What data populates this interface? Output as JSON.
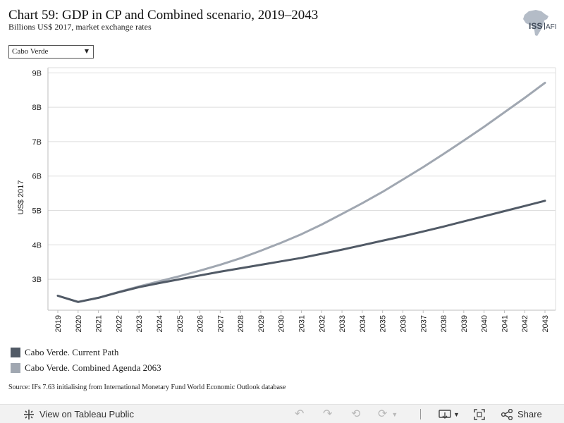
{
  "title": "Chart 59: GDP in CP and Combined scenario, 2019–2043",
  "subtitle": "Billions US$ 2017, market exchange rates",
  "logo": {
    "text_main": "ISS",
    "text_accent": "AFI"
  },
  "filter": {
    "selected": "Cabo Verde"
  },
  "source": "Source: IFs 7.63 initialising from International Monetary Fund World Economic Outlook database",
  "colors": {
    "current_path": "#515a66",
    "combined": "#a0a7b1",
    "grid": "#dedede"
  },
  "footer": {
    "view_label": "View on Tableau Public",
    "share_label": "Share",
    "icons": [
      "tableau-icon",
      "undo-icon",
      "redo-icon",
      "revert-icon",
      "refresh-icon",
      "download-icon",
      "fullscreen-icon",
      "share-icon"
    ]
  },
  "chart_data": {
    "type": "line",
    "title": "Chart 59: GDP in CP and Combined scenario, 2019–2043",
    "subtitle": "Billions US$ 2017, market exchange rates",
    "xlabel": "",
    "ylabel": "US$ 2017",
    "x": [
      "2019",
      "2020",
      "2021",
      "2022",
      "2023",
      "2024",
      "2025",
      "2026",
      "2027",
      "2028",
      "2029",
      "2030",
      "2031",
      "2032",
      "2033",
      "2034",
      "2035",
      "2036",
      "2037",
      "2038",
      "2039",
      "2040",
      "2041",
      "2042",
      "2043"
    ],
    "yticks": [
      3,
      4,
      5,
      6,
      7,
      8,
      9
    ],
    "ytick_labels": [
      "3B",
      "4B",
      "5B",
      "6B",
      "7B",
      "8B",
      "9B"
    ],
    "ylim": [
      2.1,
      9.15
    ],
    "grid": true,
    "legend_position": "bottom-left",
    "series": [
      {
        "name": "Cabo Verde. Current Path",
        "values": [
          2.52,
          2.34,
          2.46,
          2.62,
          2.77,
          2.89,
          3.0,
          3.11,
          3.22,
          3.32,
          3.42,
          3.52,
          3.62,
          3.74,
          3.86,
          3.99,
          4.12,
          4.25,
          4.39,
          4.53,
          4.68,
          4.83,
          4.98,
          5.13,
          5.28
        ]
      },
      {
        "name": "Cabo Verde. Combined Agenda 2063",
        "values": [
          2.52,
          2.34,
          2.46,
          2.63,
          2.79,
          2.94,
          3.09,
          3.25,
          3.42,
          3.61,
          3.83,
          4.06,
          4.31,
          4.59,
          4.9,
          5.21,
          5.54,
          5.9,
          6.26,
          6.64,
          7.03,
          7.43,
          7.85,
          8.27,
          8.71
        ]
      }
    ]
  }
}
